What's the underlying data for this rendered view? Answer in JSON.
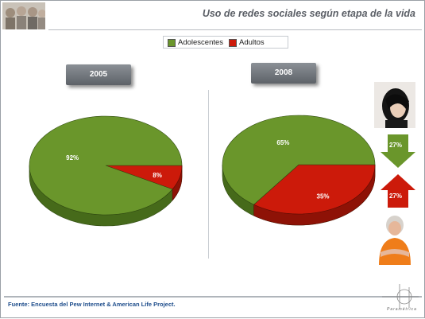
{
  "title": "Uso  de redes sociales según etapa de la vida",
  "footer": "Fuente: Encuesta del Pew Internet & American Life Project.",
  "logo_text": "Paramétrica",
  "colors": {
    "adolescentes": "#6a962b",
    "adultos": "#cc1a0a"
  },
  "photos": {
    "header": "crowd-photo",
    "teen": "teen-photo",
    "adult": "adult-woman-photo"
  },
  "chart_data": {
    "type": "pie",
    "legend": [
      "Adolescentes",
      "Adultos"
    ],
    "legend_position": "top-center",
    "charts": [
      {
        "year": "2005",
        "slices": [
          {
            "name": "Adolescentes",
            "value": 92,
            "label": "92%"
          },
          {
            "name": "Adultos",
            "value": 8,
            "label": "8%"
          }
        ]
      },
      {
        "year": "2008",
        "slices": [
          {
            "name": "Adolescentes",
            "value": 65,
            "label": "65%"
          },
          {
            "name": "Adultos",
            "value": 35,
            "label": "35%"
          }
        ]
      }
    ],
    "annotations": [
      {
        "direction": "down",
        "label": "27%",
        "color": "#6a962b"
      },
      {
        "direction": "up",
        "label": "27%",
        "color": "#cc1a0a"
      }
    ]
  }
}
